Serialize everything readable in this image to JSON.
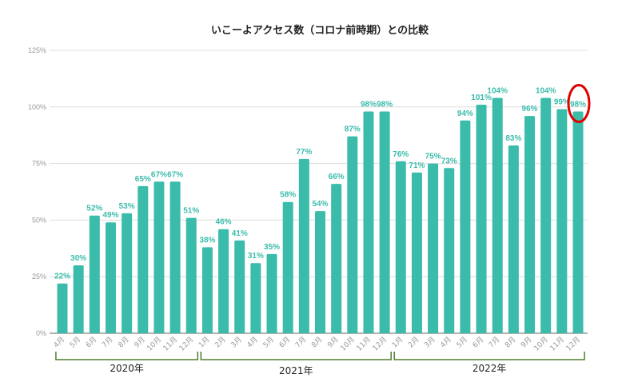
{
  "chart_data": {
    "type": "bar",
    "title": "いこーよアクセス数（コロナ前時期）との比較",
    "ylim": [
      0,
      125
    ],
    "yticks": [
      "0%",
      "25%",
      "50%",
      "75%",
      "100%",
      "125%"
    ],
    "ytick_values": [
      0,
      25,
      50,
      75,
      100,
      125
    ],
    "grid": true,
    "bar_color": "#3bbcab",
    "categories": [
      "4月",
      "5月",
      "6月",
      "7月",
      "8月",
      "9月",
      "10月",
      "11月",
      "12月",
      "1月",
      "2月",
      "3月",
      "4月",
      "5月",
      "6月",
      "7月",
      "8月",
      "9月",
      "10月",
      "11月",
      "12月",
      "1月",
      "2月",
      "3月",
      "4月",
      "5月",
      "6月",
      "7月",
      "8月",
      "9月",
      "10月",
      "11月",
      "12月"
    ],
    "values": [
      22,
      30,
      52,
      49,
      53,
      65,
      67,
      67,
      51,
      38,
      46,
      41,
      31,
      35,
      58,
      77,
      54,
      66,
      87,
      98,
      98,
      76,
      71,
      75,
      73,
      94,
      101,
      104,
      83,
      96,
      104,
      99,
      98
    ],
    "groups": [
      {
        "label": "2020年",
        "start": 0,
        "end": 8
      },
      {
        "label": "2021年",
        "start": 9,
        "end": 20
      },
      {
        "label": "2022年",
        "start": 21,
        "end": 32
      }
    ],
    "annotation": {
      "type": "red-circle",
      "target_index": 32,
      "color": "#e00000"
    }
  }
}
